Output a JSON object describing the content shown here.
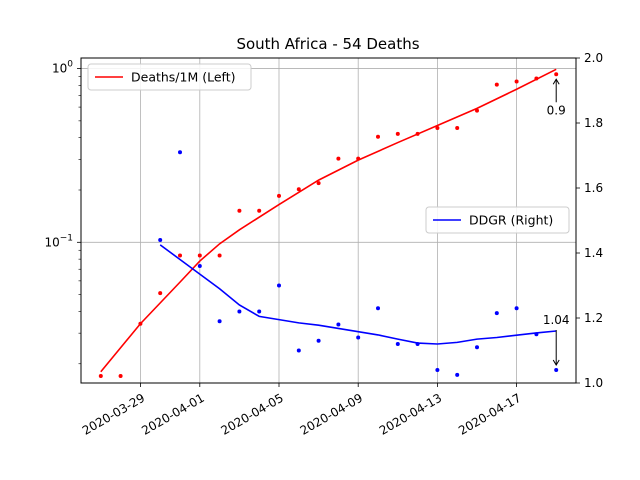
{
  "chart_data": {
    "type": "line",
    "title": "South Africa - 54 Deaths",
    "grid": true,
    "x_axis": {
      "type": "date",
      "range": [
        "2020-03-26",
        "2020-04-20"
      ],
      "tick_labels": [
        "2020-03-29",
        "2020-04-01",
        "2020-04-05",
        "2020-04-09",
        "2020-04-13",
        "2020-04-17"
      ]
    },
    "y_left": {
      "scale": "log",
      "range": [
        0.0155,
        1.15
      ],
      "tick_labels": [
        {
          "value": 1,
          "label": "10^0"
        },
        {
          "value": 0.1,
          "label": "10^−1"
        }
      ]
    },
    "y_right": {
      "scale": "linear",
      "range": [
        1.0,
        2.0
      ],
      "tick_labels": [
        "1.0",
        "1.2",
        "1.4",
        "1.6",
        "1.8",
        "2.0"
      ]
    },
    "legends": [
      {
        "label": "Deaths/1M (Left)",
        "color": "#ff0000",
        "placement": "upper-left"
      },
      {
        "label": "DDGR (Right)",
        "color": "#0000ff",
        "placement": "center-right"
      }
    ],
    "series": [
      {
        "name": "Deaths/1M (Left)",
        "axis": "left",
        "color": "#ff0000",
        "kind": "points",
        "x": [
          "2020-03-27",
          "2020-03-28",
          "2020-03-29",
          "2020-03-30",
          "2020-03-31",
          "2020-04-01",
          "2020-04-02",
          "2020-04-03",
          "2020-04-04",
          "2020-04-05",
          "2020-04-06",
          "2020-04-07",
          "2020-04-08",
          "2020-04-09",
          "2020-04-10",
          "2020-04-11",
          "2020-04-12",
          "2020-04-13",
          "2020-04-14",
          "2020-04-15",
          "2020-04-16",
          "2020-04-17",
          "2020-04-18",
          "2020-04-19"
        ],
        "values": [
          0.017,
          0.017,
          0.034,
          0.051,
          0.084,
          0.084,
          0.084,
          0.152,
          0.152,
          0.185,
          0.202,
          0.219,
          0.303,
          0.303,
          0.405,
          0.421,
          0.421,
          0.455,
          0.455,
          0.573,
          0.808,
          0.842,
          0.876,
          0.927
        ]
      },
      {
        "name": "Deaths/1M (Left)",
        "axis": "left",
        "color": "#ff0000",
        "kind": "line",
        "x": [
          "2020-03-27",
          "2020-03-29",
          "2020-03-31",
          "2020-04-01",
          "2020-04-02",
          "2020-04-03",
          "2020-04-05",
          "2020-04-07",
          "2020-04-09",
          "2020-04-11",
          "2020-04-13",
          "2020-04-15",
          "2020-04-17",
          "2020-04-19"
        ],
        "values": [
          0.018,
          0.034,
          0.059,
          0.078,
          0.098,
          0.118,
          0.165,
          0.228,
          0.297,
          0.375,
          0.47,
          0.59,
          0.76,
          0.99
        ]
      },
      {
        "name": "DDGR (Right)",
        "axis": "right",
        "color": "#0000ff",
        "kind": "points",
        "x": [
          "2020-03-30",
          "2020-03-31",
          "2020-04-01",
          "2020-04-02",
          "2020-04-03",
          "2020-04-04",
          "2020-04-05",
          "2020-04-06",
          "2020-04-07",
          "2020-04-08",
          "2020-04-09",
          "2020-04-10",
          "2020-04-11",
          "2020-04-12",
          "2020-04-13",
          "2020-04-14",
          "2020-04-15",
          "2020-04-16",
          "2020-04-17",
          "2020-04-18",
          "2020-04-19"
        ],
        "values": [
          1.44,
          1.71,
          1.36,
          1.19,
          1.22,
          1.22,
          1.3,
          1.1,
          1.13,
          1.18,
          1.14,
          1.23,
          1.12,
          1.12,
          1.04,
          1.025,
          1.11,
          1.215,
          1.23,
          1.15,
          1.04
        ]
      },
      {
        "name": "DDGR (Right)",
        "axis": "right",
        "color": "#0000ff",
        "kind": "line",
        "x": [
          "2020-03-30",
          "2020-03-31",
          "2020-04-01",
          "2020-04-02",
          "2020-04-03",
          "2020-04-04",
          "2020-04-05",
          "2020-04-06",
          "2020-04-07",
          "2020-04-08",
          "2020-04-09",
          "2020-04-10",
          "2020-04-11",
          "2020-04-12",
          "2020-04-13",
          "2020-04-14",
          "2020-04-15",
          "2020-04-16",
          "2020-04-17",
          "2020-04-18",
          "2020-04-19"
        ],
        "values": [
          1.425,
          1.38,
          1.335,
          1.29,
          1.24,
          1.205,
          1.195,
          1.185,
          1.178,
          1.168,
          1.158,
          1.148,
          1.135,
          1.123,
          1.12,
          1.125,
          1.135,
          1.14,
          1.147,
          1.154,
          1.16
        ]
      }
    ],
    "annotations": [
      {
        "text": "0.9",
        "axis": "left",
        "x": "2020-04-19",
        "y": 0.927
      },
      {
        "text": "1.04",
        "axis": "right",
        "x": "2020-04-19",
        "y": 1.04
      }
    ]
  }
}
